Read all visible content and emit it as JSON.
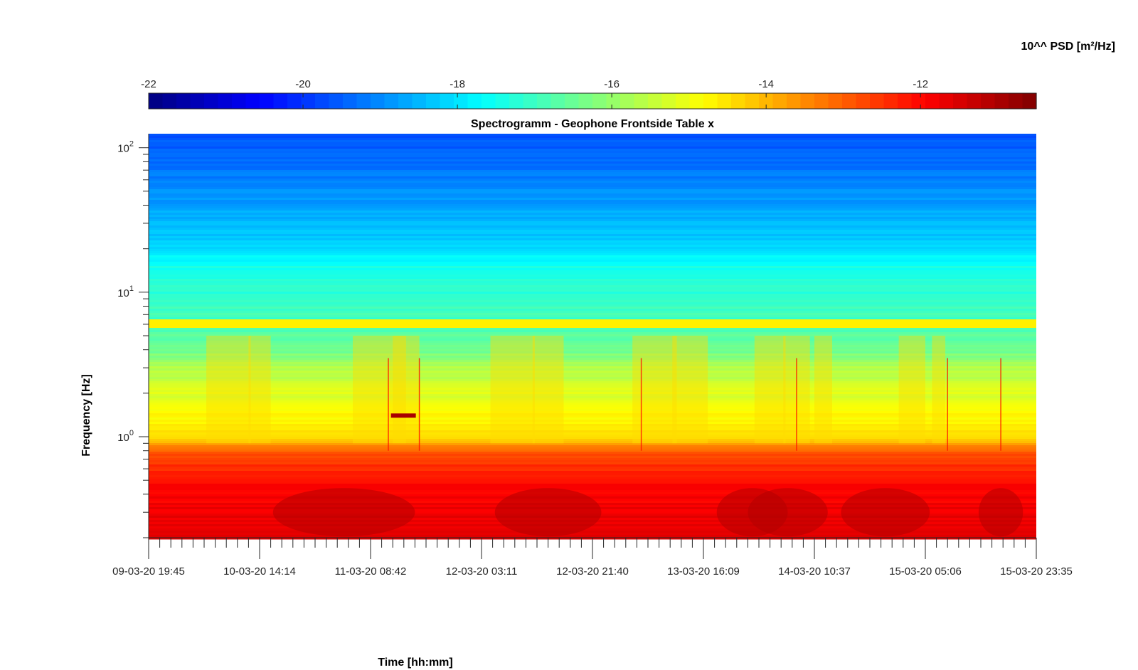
{
  "chart_data": {
    "type": "heatmap",
    "title": "Spectrogramm - Geophone Frontside Table x",
    "xlabel": "Time [hh:mm]",
    "ylabel": "Frequency [Hz]",
    "x_tick_labels": [
      "09-03-20 19:45",
      "10-03-20 14:14",
      "11-03-20 08:42",
      "12-03-20 03:11",
      "12-03-20 21:40",
      "13-03-20 16:09",
      "14-03-20 10:37",
      "15-03-20 05:06",
      "15-03-20 23:35"
    ],
    "y_scale": "log",
    "y_range": [
      0.2,
      125
    ],
    "y_tick_labels": [
      {
        "base": "10",
        "exp": "0",
        "value": 1
      },
      {
        "base": "10",
        "exp": "1",
        "value": 10
      },
      {
        "base": "10",
        "exp": "2",
        "value": 100
      }
    ],
    "colorbar": {
      "label": "10^^ PSD [m²/Hz]",
      "range": [
        -22,
        -10.5
      ],
      "tick_labels": [
        "-22",
        "-20",
        "-18",
        "-16",
        "-14",
        "-12"
      ],
      "colormap": "jet",
      "placement": "top"
    },
    "grid": false
  }
}
